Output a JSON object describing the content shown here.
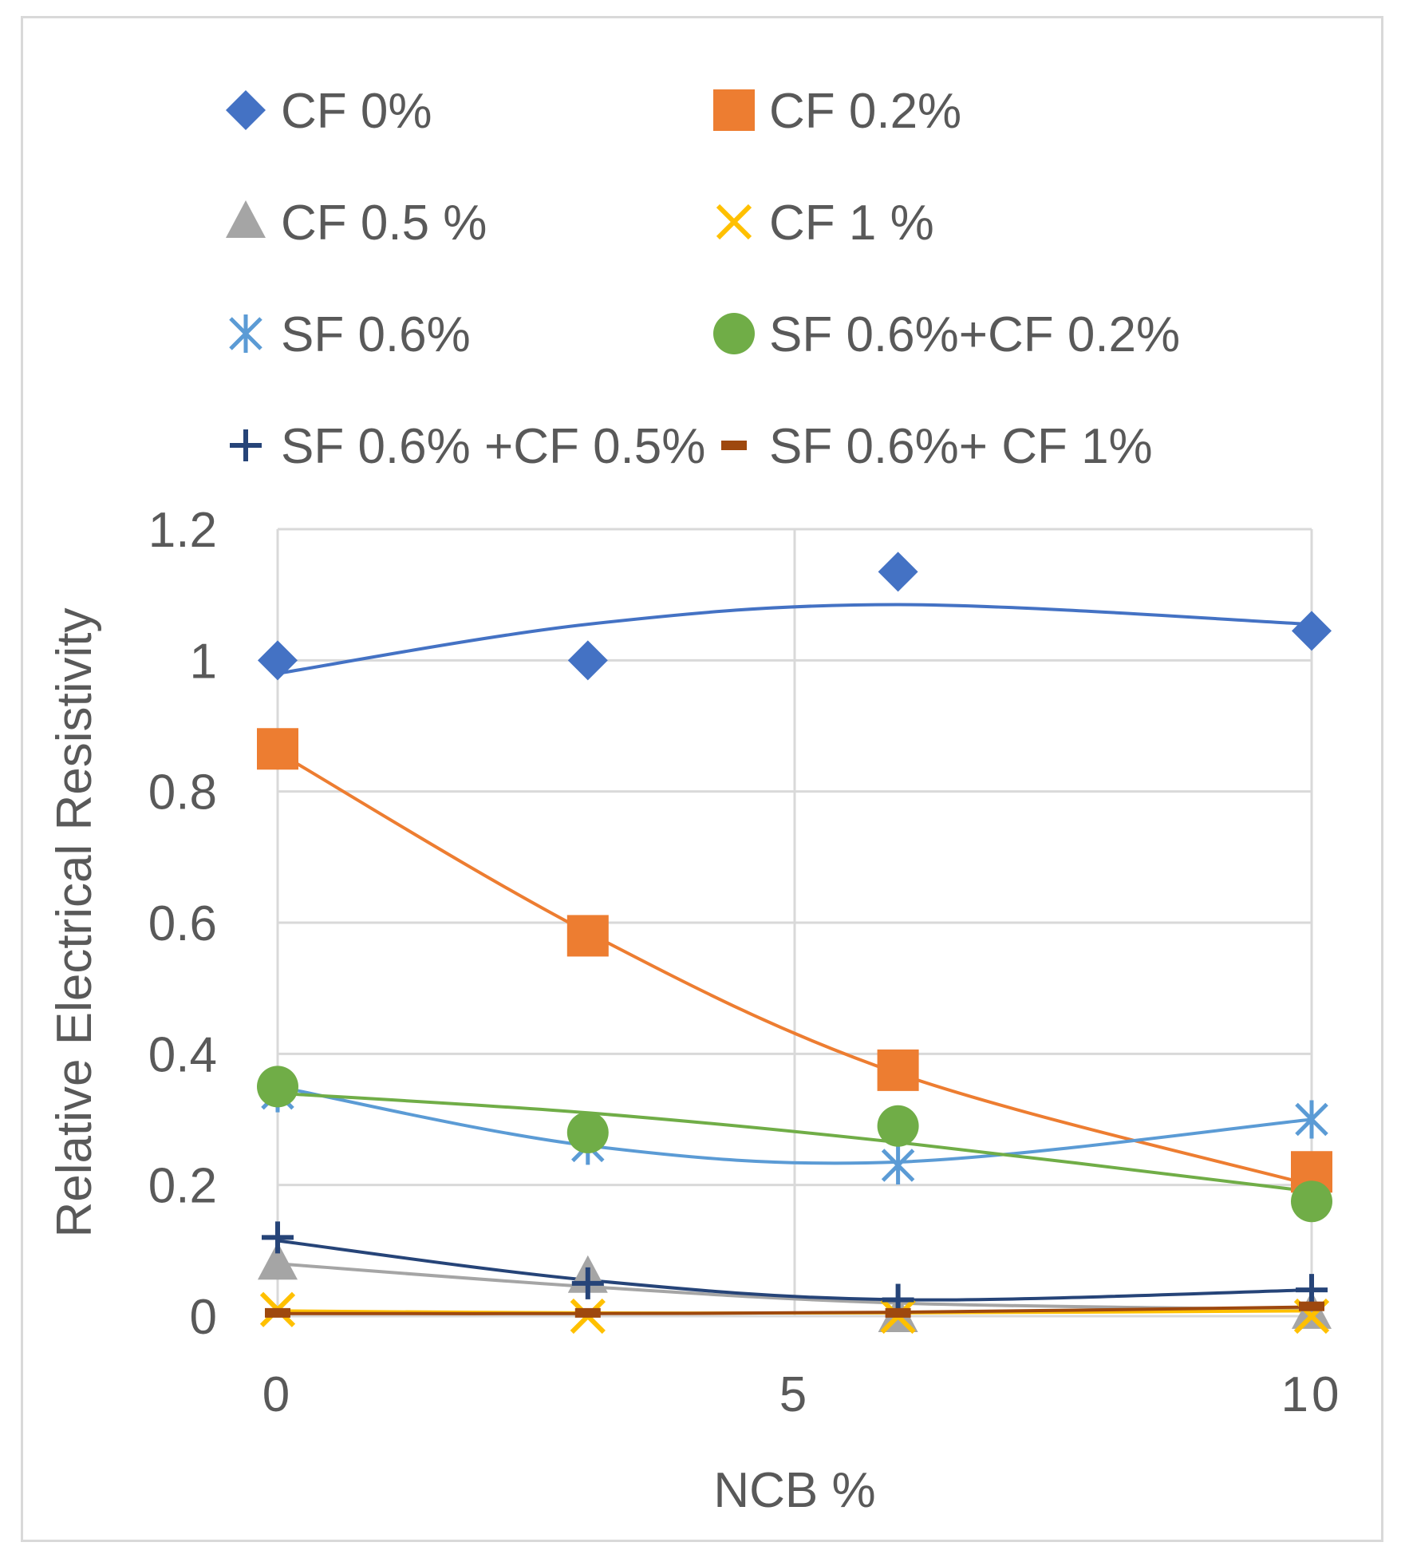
{
  "chart_data": {
    "type": "scatter",
    "title": "",
    "xlabel": "NCB %",
    "ylabel": "Relative Electrical Resistivity",
    "xlim": [
      0,
      10
    ],
    "ylim": [
      0,
      1.2
    ],
    "x_ticks": [
      "0",
      "5",
      "10"
    ],
    "y_ticks": [
      "0",
      "0.2",
      "0.4",
      "0.6",
      "0.8",
      "1",
      "1.2"
    ],
    "grid": true,
    "legend_position": "top",
    "trendline": "polynomial order 2",
    "x": [
      0,
      3,
      6,
      10
    ],
    "series": [
      {
        "name": "CF 0%",
        "marker": "diamond",
        "color": "#4472c4",
        "values": [
          1.0,
          1.0,
          1.135,
          1.045
        ],
        "trend": [
          0.98,
          1.055,
          1.085,
          1.055
        ]
      },
      {
        "name": "CF 0.2%",
        "marker": "square",
        "color": "#ed7d31",
        "values": [
          0.865,
          0.58,
          0.375,
          0.22
        ],
        "trend": [
          0.86,
          0.585,
          0.37,
          0.2
        ]
      },
      {
        "name": "CF 0.5 %",
        "marker": "triangle",
        "color": "#a5a5a5",
        "values": [
          0.08,
          0.06,
          0.0,
          0.005
        ],
        "trend": [
          0.08,
          0.045,
          0.02,
          0.01
        ]
      },
      {
        "name": "CF 1 %",
        "marker": "x",
        "color": "#ffc000",
        "values": [
          0.01,
          0.0,
          0.0,
          0.0
        ],
        "trend": [
          0.008,
          0.005,
          0.005,
          0.008
        ]
      },
      {
        "name": "SF 0.6%",
        "marker": "asterisk",
        "color": "#5b9bd5",
        "values": [
          0.34,
          0.26,
          0.23,
          0.3
        ],
        "trend": [
          0.35,
          0.26,
          0.235,
          0.3
        ]
      },
      {
        "name": "SF 0.6%+CF 0.2%",
        "marker": "circle",
        "color": "#70ad47",
        "values": [
          0.35,
          0.28,
          0.29,
          0.175
        ],
        "trend": [
          0.34,
          0.31,
          0.265,
          0.19
        ]
      },
      {
        "name": "SF 0.6% +CF 0.5%",
        "marker": "plus",
        "color": "#264478",
        "values": [
          0.12,
          0.05,
          0.025,
          0.04
        ],
        "trend": [
          0.115,
          0.055,
          0.025,
          0.04
        ]
      },
      {
        "name": "SF 0.6%+ CF 1%",
        "marker": "dash",
        "color": "#9e480e",
        "values": [
          0.005,
          0.005,
          0.005,
          0.015
        ],
        "trend": [
          0.004,
          0.004,
          0.006,
          0.014
        ]
      }
    ]
  }
}
